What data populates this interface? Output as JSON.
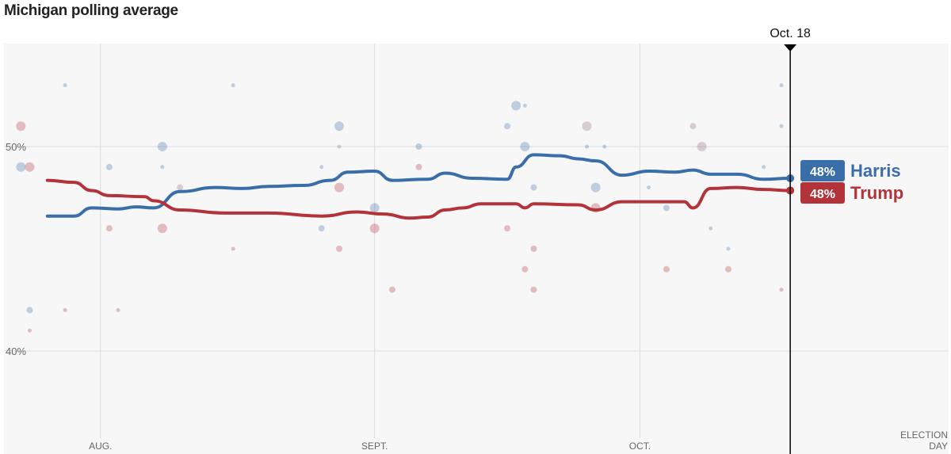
{
  "chart_data": {
    "type": "line",
    "title": "Michigan polling average",
    "xlim": [
      "2024-07-21",
      "2024-11-05"
    ],
    "ylim": [
      35,
      55
    ],
    "grid": true,
    "y_ticks": [
      {
        "value": 50,
        "label": "50%"
      },
      {
        "value": 40,
        "label": "40%"
      }
    ],
    "x_ticks": [
      {
        "date": "2024-08-01",
        "label": "AUG."
      },
      {
        "date": "2024-09-01",
        "label": "SEPT."
      },
      {
        "date": "2024-10-01",
        "label": "OCT."
      }
    ],
    "election_day": {
      "date": "2024-11-05",
      "label_line1": "ELECTION",
      "label_line2": "DAY"
    },
    "current_marker": {
      "date": "2024-10-18",
      "label": "Oct. 18"
    },
    "colors": {
      "Harris": "#3a6ea8",
      "Trump": "#b3333b",
      "overlap": "#8a6a86"
    },
    "series": [
      {
        "name": "Harris",
        "end_label": "48%",
        "points": [
          [
            "2024-07-26",
            46.6
          ],
          [
            "2024-07-29",
            46.6
          ],
          [
            "2024-07-31",
            47.0
          ],
          [
            "2024-08-03",
            46.95
          ],
          [
            "2024-08-05",
            47.05
          ],
          [
            "2024-08-07",
            47.0
          ],
          [
            "2024-08-10",
            47.8
          ],
          [
            "2024-08-14",
            48.0
          ],
          [
            "2024-08-17",
            47.95
          ],
          [
            "2024-08-20",
            48.05
          ],
          [
            "2024-08-24",
            48.1
          ],
          [
            "2024-08-27",
            48.35
          ],
          [
            "2024-08-29",
            48.75
          ],
          [
            "2024-09-01",
            48.8
          ],
          [
            "2024-09-03",
            48.35
          ],
          [
            "2024-09-07",
            48.4
          ],
          [
            "2024-09-09",
            48.7
          ],
          [
            "2024-09-12",
            48.45
          ],
          [
            "2024-09-16",
            48.4
          ],
          [
            "2024-09-17",
            49.0
          ],
          [
            "2024-09-19",
            49.6
          ],
          [
            "2024-09-22",
            49.55
          ],
          [
            "2024-09-24",
            49.4
          ],
          [
            "2024-09-26",
            49.3
          ],
          [
            "2024-09-29",
            48.6
          ],
          [
            "2024-10-02",
            48.8
          ],
          [
            "2024-10-05",
            48.75
          ],
          [
            "2024-10-07",
            48.85
          ],
          [
            "2024-10-09",
            48.65
          ],
          [
            "2024-10-12",
            48.65
          ],
          [
            "2024-10-15",
            48.4
          ],
          [
            "2024-10-18",
            48.45
          ]
        ]
      },
      {
        "name": "Trump",
        "end_label": "48%",
        "points": [
          [
            "2024-07-26",
            48.35
          ],
          [
            "2024-07-29",
            48.25
          ],
          [
            "2024-07-31",
            47.85
          ],
          [
            "2024-08-02",
            47.6
          ],
          [
            "2024-08-06",
            47.55
          ],
          [
            "2024-08-07",
            47.35
          ],
          [
            "2024-08-10",
            46.9
          ],
          [
            "2024-08-15",
            46.75
          ],
          [
            "2024-08-20",
            46.75
          ],
          [
            "2024-08-26",
            46.6
          ],
          [
            "2024-08-30",
            46.8
          ],
          [
            "2024-09-02",
            46.7
          ],
          [
            "2024-09-05",
            46.5
          ],
          [
            "2024-09-07",
            46.55
          ],
          [
            "2024-09-09",
            46.9
          ],
          [
            "2024-09-11",
            47.0
          ],
          [
            "2024-09-13",
            47.2
          ],
          [
            "2024-09-17",
            47.2
          ],
          [
            "2024-09-18",
            47.0
          ],
          [
            "2024-09-19",
            47.2
          ],
          [
            "2024-09-24",
            47.15
          ],
          [
            "2024-09-26",
            46.9
          ],
          [
            "2024-09-29",
            47.3
          ],
          [
            "2024-10-03",
            47.3
          ],
          [
            "2024-10-06",
            47.3
          ],
          [
            "2024-10-07",
            47.0
          ],
          [
            "2024-10-09",
            47.95
          ],
          [
            "2024-10-12",
            48.0
          ],
          [
            "2024-10-15",
            47.9
          ],
          [
            "2024-10-18",
            47.85
          ]
        ]
      }
    ],
    "polls": [
      {
        "party": "Harris",
        "date": "2024-07-23",
        "value": 49,
        "size": "large"
      },
      {
        "party": "Harris",
        "date": "2024-07-28",
        "value": 53,
        "size": "small"
      },
      {
        "party": "Harris",
        "date": "2024-07-24",
        "value": 42,
        "size": "medium"
      },
      {
        "party": "Harris",
        "date": "2024-08-02",
        "value": 49,
        "size": "medium"
      },
      {
        "party": "Harris",
        "date": "2024-08-08",
        "value": 50,
        "size": "large"
      },
      {
        "party": "Harris",
        "date": "2024-08-08",
        "value": 49,
        "size": "small"
      },
      {
        "party": "Harris",
        "date": "2024-08-16",
        "value": 53,
        "size": "small"
      },
      {
        "party": "Harris",
        "date": "2024-08-26",
        "value": 49,
        "size": "small"
      },
      {
        "party": "Harris",
        "date": "2024-08-28",
        "value": 51,
        "size": "large"
      },
      {
        "party": "Harris",
        "date": "2024-08-26",
        "value": 46,
        "size": "medium"
      },
      {
        "party": "Harris",
        "date": "2024-09-01",
        "value": 47,
        "size": "large"
      },
      {
        "party": "Harris",
        "date": "2024-09-06",
        "value": 50,
        "size": "medium"
      },
      {
        "party": "Harris",
        "date": "2024-09-17",
        "value": 52,
        "size": "large"
      },
      {
        "party": "Harris",
        "date": "2024-09-18",
        "value": 52,
        "size": "small"
      },
      {
        "party": "Harris",
        "date": "2024-09-16",
        "value": 51,
        "size": "medium"
      },
      {
        "party": "Harris",
        "date": "2024-09-18",
        "value": 50,
        "size": "large"
      },
      {
        "party": "Harris",
        "date": "2024-09-19",
        "value": 48,
        "size": "medium"
      },
      {
        "party": "Harris",
        "date": "2024-09-26",
        "value": 48,
        "size": "large"
      },
      {
        "party": "Harris",
        "date": "2024-09-25",
        "value": 50,
        "size": "small"
      },
      {
        "party": "Harris",
        "date": "2024-09-27",
        "value": 50,
        "size": "small"
      },
      {
        "party": "Harris",
        "date": "2024-10-02",
        "value": 48,
        "size": "small"
      },
      {
        "party": "Harris",
        "date": "2024-10-04",
        "value": 47,
        "size": "medium"
      },
      {
        "party": "Harris",
        "date": "2024-10-09",
        "value": 46,
        "size": "small"
      },
      {
        "party": "Harris",
        "date": "2024-10-11",
        "value": 45,
        "size": "small"
      },
      {
        "party": "Harris",
        "date": "2024-10-15",
        "value": 49,
        "size": "small"
      },
      {
        "party": "Harris",
        "date": "2024-10-17",
        "value": 53,
        "size": "small"
      },
      {
        "party": "Harris",
        "date": "2024-10-17",
        "value": 51,
        "size": "small"
      },
      {
        "party": "Trump",
        "date": "2024-07-23",
        "value": 51,
        "size": "large"
      },
      {
        "party": "Trump",
        "date": "2024-07-24",
        "value": 49,
        "size": "large"
      },
      {
        "party": "Trump",
        "date": "2024-07-24",
        "value": 41,
        "size": "small"
      },
      {
        "party": "Trump",
        "date": "2024-07-28",
        "value": 42,
        "size": "small"
      },
      {
        "party": "Trump",
        "date": "2024-08-03",
        "value": 42,
        "size": "small"
      },
      {
        "party": "Trump",
        "date": "2024-08-02",
        "value": 46,
        "size": "medium"
      },
      {
        "party": "Trump",
        "date": "2024-08-08",
        "value": 46,
        "size": "large"
      },
      {
        "party": "Trump",
        "date": "2024-08-16",
        "value": 45,
        "size": "small"
      },
      {
        "party": "Trump",
        "date": "2024-08-28",
        "value": 48,
        "size": "large"
      },
      {
        "party": "Trump",
        "date": "2024-08-28",
        "value": 45,
        "size": "medium"
      },
      {
        "party": "Trump",
        "date": "2024-09-01",
        "value": 46,
        "size": "large"
      },
      {
        "party": "Trump",
        "date": "2024-09-03",
        "value": 43,
        "size": "medium"
      },
      {
        "party": "Trump",
        "date": "2024-09-06",
        "value": 49,
        "size": "medium"
      },
      {
        "party": "Trump",
        "date": "2024-09-16",
        "value": 46,
        "size": "medium"
      },
      {
        "party": "Trump",
        "date": "2024-09-19",
        "value": 45,
        "size": "medium"
      },
      {
        "party": "Trump",
        "date": "2024-09-19",
        "value": 43,
        "size": "medium"
      },
      {
        "party": "Trump",
        "date": "2024-09-18",
        "value": 44,
        "size": "medium"
      },
      {
        "party": "Trump",
        "date": "2024-09-26",
        "value": 47,
        "size": "large"
      },
      {
        "party": "Trump",
        "date": "2024-10-04",
        "value": 44,
        "size": "medium"
      },
      {
        "party": "Trump",
        "date": "2024-10-11",
        "value": 44,
        "size": "medium"
      },
      {
        "party": "Trump",
        "date": "2024-10-17",
        "value": 43,
        "size": "small"
      },
      {
        "party": "overlap",
        "date": "2024-09-25",
        "value": 51,
        "size": "large"
      },
      {
        "party": "overlap",
        "date": "2024-10-07",
        "value": 51,
        "size": "medium"
      },
      {
        "party": "overlap",
        "date": "2024-10-08",
        "value": 50,
        "size": "large"
      },
      {
        "party": "overlap",
        "date": "2024-08-10",
        "value": 48,
        "size": "medium"
      },
      {
        "party": "overlap",
        "date": "2024-08-28",
        "value": 50,
        "size": "small"
      }
    ]
  }
}
